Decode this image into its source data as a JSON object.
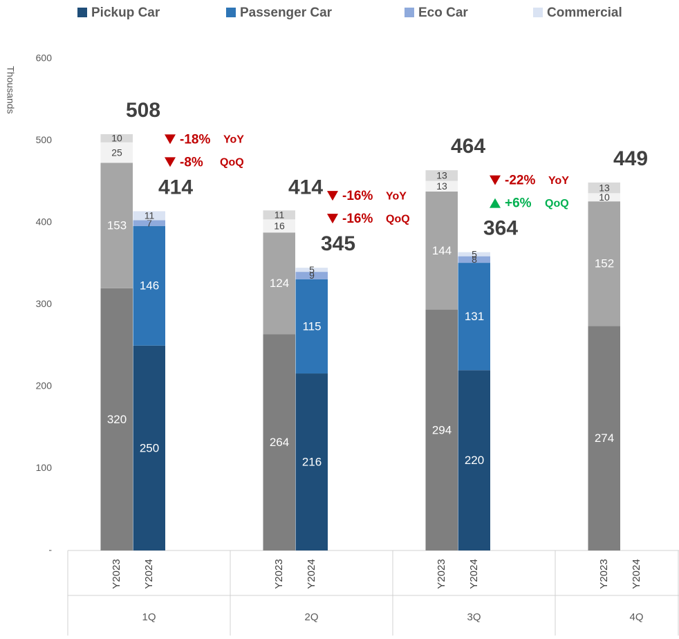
{
  "chart_data": {
    "type": "bar",
    "stacked": true,
    "y_label": "Thousands",
    "categories": [
      "Y2023",
      "Y2024",
      "Y2023",
      "Y2024",
      "Y2023",
      "Y2024",
      "Y2023",
      "Y2024"
    ],
    "groups": [
      "1Q",
      "2Q",
      "3Q",
      "4Q"
    ],
    "ylim": [
      0,
      600
    ],
    "yticks": [
      {
        "value": 0,
        "label": "-"
      },
      100,
      200,
      300,
      400,
      500,
      600
    ],
    "grid": false,
    "legend": "top",
    "series": [
      {
        "name": "Pickup Car",
        "color": "#1f4e79",
        "prior_color": "#7f7f7f",
        "values": [
          320,
          250,
          264,
          216,
          294,
          220,
          274,
          null
        ]
      },
      {
        "name": "Passenger Car",
        "color": "#2e75b6",
        "prior_color": "#a6a6a6",
        "values": [
          153,
          146,
          124,
          115,
          144,
          131,
          152,
          null
        ]
      },
      {
        "name": "Eco Car",
        "color": "#8faadc",
        "prior_color": "#f2f2f2",
        "values": [
          25,
          7,
          16,
          9,
          13,
          8,
          10,
          null
        ]
      },
      {
        "name": "Commercial",
        "color": "#dae3f3",
        "prior_color": "#d9d9d9",
        "values": [
          10,
          11,
          11,
          5,
          13,
          5,
          13,
          null
        ]
      }
    ],
    "totals": [
      508,
      414,
      414,
      345,
      464,
      364,
      449,
      null
    ],
    "changes": [
      [
        {
          "value": -18,
          "label": "-18%",
          "metric": "YoY",
          "color": "#c00000"
        },
        {
          "value": -8,
          "label": "-8%",
          "metric": "QoQ",
          "color": "#c00000"
        }
      ],
      [
        {
          "value": -16,
          "label": "-16%",
          "metric": "YoY",
          "color": "#c00000"
        },
        {
          "value": -16,
          "label": "-16%",
          "metric": "QoQ",
          "color": "#c00000"
        }
      ],
      [
        {
          "value": -22,
          "label": "-22%",
          "metric": "YoY",
          "color": "#c00000"
        },
        {
          "value": 6,
          "label": "+6%",
          "metric": "QoQ",
          "color": "#00b050"
        }
      ]
    ]
  }
}
